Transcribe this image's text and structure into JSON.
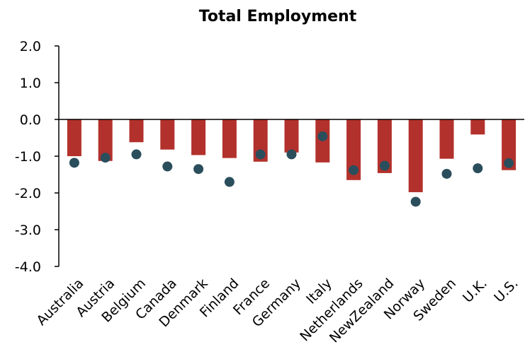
{
  "chart_data": {
    "type": "bar",
    "title": "Total Employment",
    "xlabel": "",
    "ylabel": "",
    "ylim": [
      -4.0,
      2.0
    ],
    "ytick_values": [
      2.0,
      1.0,
      0.0,
      -1.0,
      -2.0,
      -3.0,
      -4.0
    ],
    "ytick_labels": [
      "2.0",
      "1.0",
      "0.0",
      "-1.0",
      "-2.0",
      "-3.0",
      "-4.0"
    ],
    "categories": [
      "Australia",
      "Austria",
      "Belgium",
      "Canada",
      "Denmark",
      "Finland",
      "France",
      "Germany",
      "Italy",
      "Netherlands",
      "NewZealand",
      "Norway",
      "Sweden",
      "U.K.",
      "U.S."
    ],
    "series": [
      {
        "type": "bar",
        "color": "#b3312c",
        "values": [
          -1.0,
          -1.13,
          -0.62,
          -0.82,
          -0.97,
          -1.05,
          -1.15,
          -0.9,
          -1.17,
          -1.65,
          -1.46,
          -1.98,
          -1.07,
          -0.41,
          -1.38
        ]
      },
      {
        "type": "scatter",
        "color": "#2a4e5c",
        "values": [
          -1.18,
          -1.04,
          -0.95,
          -1.28,
          -1.35,
          -1.7,
          -0.95,
          -0.95,
          -0.46,
          -1.38,
          -1.26,
          -2.24,
          -1.48,
          -1.33,
          -1.19
        ]
      }
    ],
    "grid": false,
    "legend": "none"
  }
}
